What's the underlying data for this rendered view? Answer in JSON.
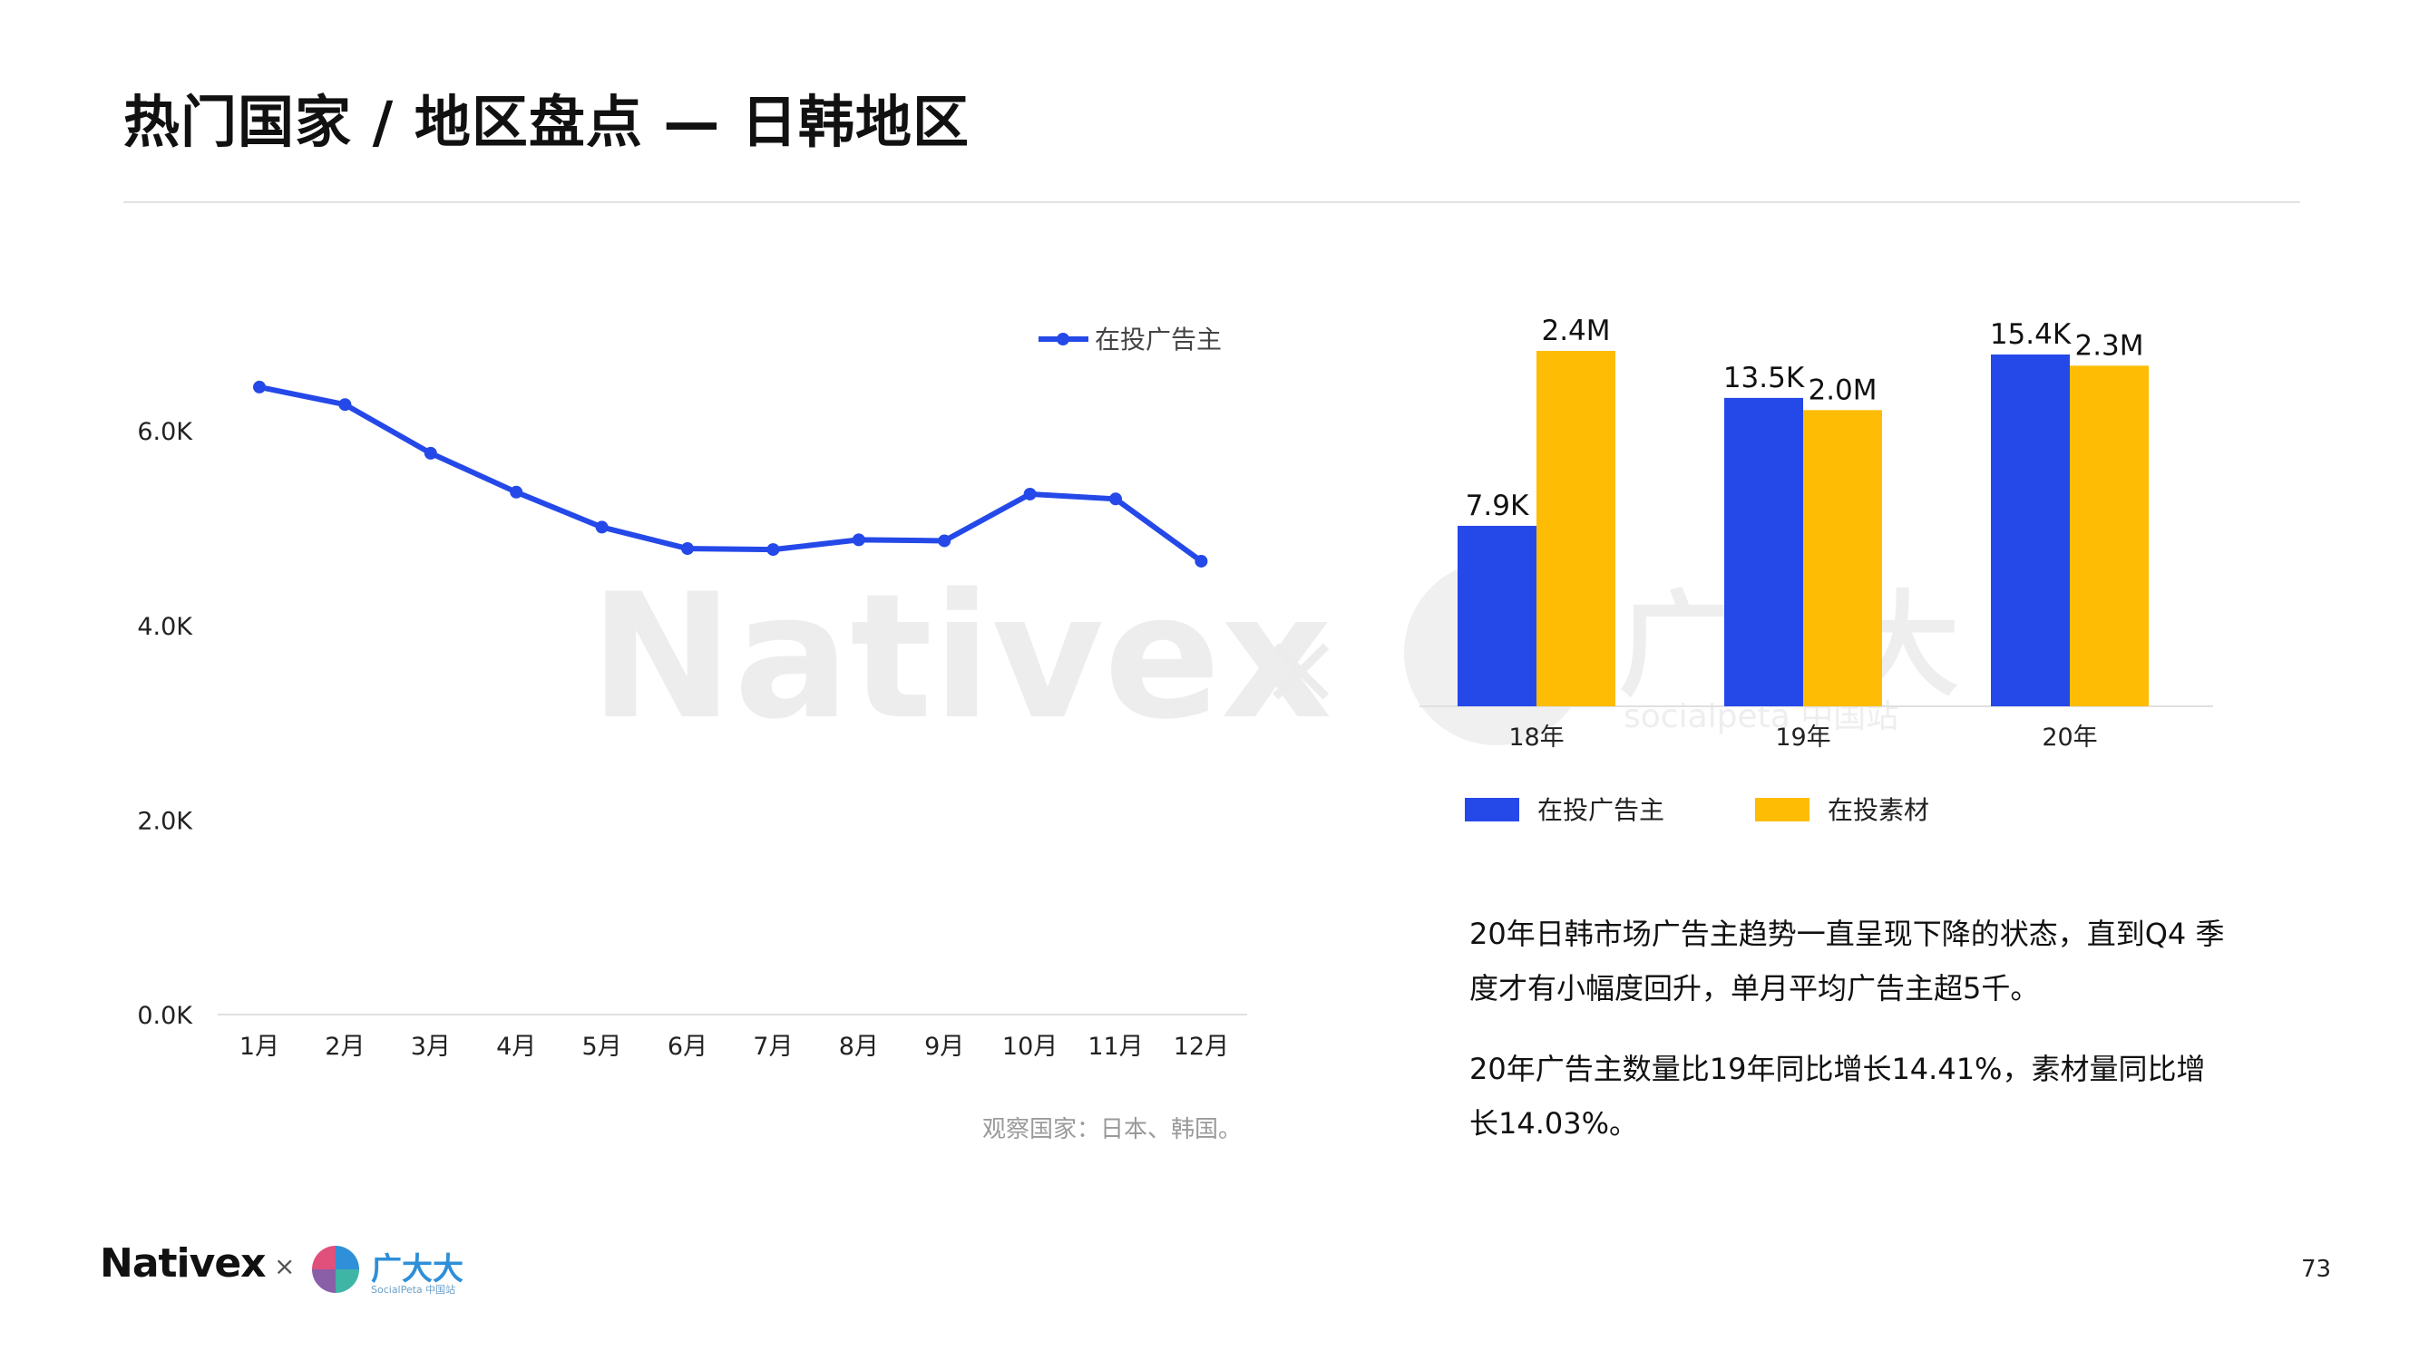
{
  "header": {
    "title": "热门国家 / 地区盘点 — 日韩地区"
  },
  "colors": {
    "blue": "#2549e8",
    "yellow": "#ffbc05",
    "grid": "#e0e0e0"
  },
  "chart_data": [
    {
      "type": "line",
      "title": "",
      "categories": [
        "1月",
        "2月",
        "3月",
        "4月",
        "5月",
        "6月",
        "7月",
        "8月",
        "9月",
        "10月",
        "11月",
        "12月"
      ],
      "series": [
        {
          "name": "在投广告主",
          "values": [
            6.45,
            6.27,
            5.77,
            5.37,
            5.01,
            4.79,
            4.78,
            4.88,
            4.87,
            5.35,
            5.3,
            4.66
          ]
        }
      ],
      "y_unit": "K",
      "yticks": [
        "0.0K",
        "2.0K",
        "4.0K",
        "6.0K"
      ],
      "ylim": [
        0,
        7.8
      ],
      "legend": "top-right",
      "grid": false
    },
    {
      "type": "bar",
      "title": "",
      "categories": [
        "18年",
        "19年",
        "20年"
      ],
      "series": [
        {
          "name": "在投广告主",
          "values": [
            7.9,
            13.5,
            15.4
          ],
          "labels": [
            "7.9K",
            "13.5K",
            "15.4K"
          ]
        },
        {
          "name": "在投素材",
          "values": [
            2.4,
            2.0,
            2.3
          ],
          "labels": [
            "2.4M",
            "2.0M",
            "2.3M"
          ]
        }
      ],
      "legend": "bottom",
      "grid": false
    }
  ],
  "footnote": "观察国家：日本、韩国。",
  "paragraphs": [
    "20年日韩市场广告主趋势一直呈现下降的状态，直到Q4 季度才有小幅度回升，单月平均广告主超5千。",
    "20年广告主数量比19年同比增长14.41%，素材量同比增长14.03%。"
  ],
  "watermark": {
    "brand": "Nativex",
    "times": "×",
    "cn": "广大大",
    "sub": "socialpeta 中国站"
  },
  "footer": {
    "brand": "Nativex",
    "times": "×",
    "cn": "广大大",
    "cn_sub": "SocialPeta 中国站"
  },
  "page_number": "73"
}
